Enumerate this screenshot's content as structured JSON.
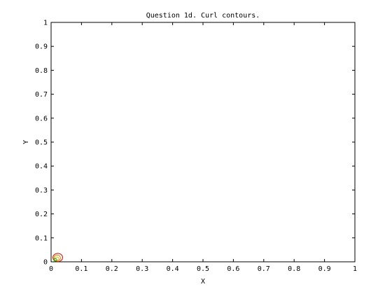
{
  "chart_data": {
    "type": "contour",
    "title": "Question 1d. Curl contours.",
    "xlabel": "X",
    "ylabel": "Y",
    "xlim": [
      0,
      1
    ],
    "ylim": [
      0,
      1
    ],
    "xticks": [
      "0",
      "0.1",
      "0.2",
      "0.3",
      "0.4",
      "0.5",
      "0.6",
      "0.7",
      "0.8",
      "0.9",
      "1"
    ],
    "yticks": [
      "0",
      "0.1",
      "0.2",
      "0.3",
      "0.4",
      "0.5",
      "0.6",
      "0.7",
      "0.8",
      "0.9",
      "1"
    ],
    "grid": false,
    "contours": [
      {
        "color": "#e00000",
        "center": [
          0.022,
          0.018
        ],
        "rx": 0.016,
        "ry": 0.017
      },
      {
        "color": "#f08000",
        "center": [
          0.02,
          0.016
        ],
        "rx": 0.011,
        "ry": 0.012
      },
      {
        "color": "#d0c000",
        "center": [
          0.018,
          0.012
        ],
        "rx": 0.008,
        "ry": 0.008
      },
      {
        "color": "#00a000",
        "center": [
          0.014,
          0.008
        ],
        "rx": 0.005,
        "ry": 0.005
      }
    ]
  }
}
